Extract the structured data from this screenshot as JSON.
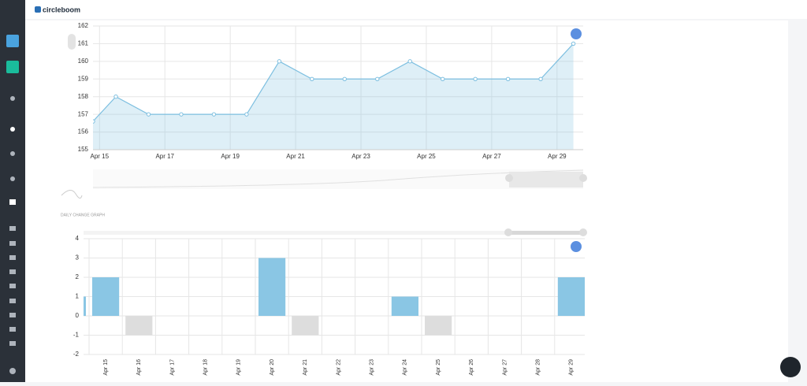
{
  "app": {
    "logo": "circleboom",
    "section_label": "DAILY CHANGE GRAPH"
  },
  "chart_data": [
    {
      "type": "area",
      "x": [
        14.8,
        15.5,
        16.5,
        17.5,
        18.5,
        19.5,
        20.5,
        21.5,
        22.5,
        23.5,
        24.5,
        25.5,
        26.5,
        27.5,
        28.5,
        29.5
      ],
      "values": [
        156.6,
        158,
        157,
        157,
        157,
        157,
        160,
        159,
        159,
        159,
        160,
        159,
        159,
        159,
        159,
        161
      ],
      "xlim": [
        14.8,
        29.8
      ],
      "xticks": [
        {
          "value": 15,
          "label": "Apr 15"
        },
        {
          "value": 17,
          "label": "Apr 17"
        },
        {
          "value": 19,
          "label": "Apr 19"
        },
        {
          "value": 21,
          "label": "Apr 21"
        },
        {
          "value": 23,
          "label": "Apr 23"
        },
        {
          "value": 25,
          "label": "Apr 25"
        },
        {
          "value": 27,
          "label": "Apr 27"
        },
        {
          "value": 29,
          "label": "Apr 29"
        }
      ],
      "ylim": [
        155,
        162
      ],
      "yticks": [
        155,
        156,
        157,
        158,
        159,
        160,
        161,
        162
      ],
      "color": "#7dbfe0",
      "grid": true
    },
    {
      "type": "bar",
      "categories": [
        null,
        "Apr 15",
        "Apr 16",
        "Apr 17",
        "Apr 18",
        "Apr 19",
        "Apr 20",
        "Apr 21",
        "Apr 22",
        "Apr 23",
        "Apr 24",
        "Apr 25",
        "Apr 26",
        "Apr 27",
        "Apr 28",
        "Apr 29"
      ],
      "values": [
        1,
        2,
        -1,
        0,
        0,
        0,
        3,
        -1,
        0,
        0,
        1,
        -1,
        0,
        0,
        0,
        2
      ],
      "ylim": [
        -2,
        4
      ],
      "yticks": [
        -2,
        -1,
        0,
        1,
        2,
        3,
        4
      ],
      "color": "#8ac6e4",
      "negative_color": "#dddddd",
      "grid": true
    }
  ]
}
